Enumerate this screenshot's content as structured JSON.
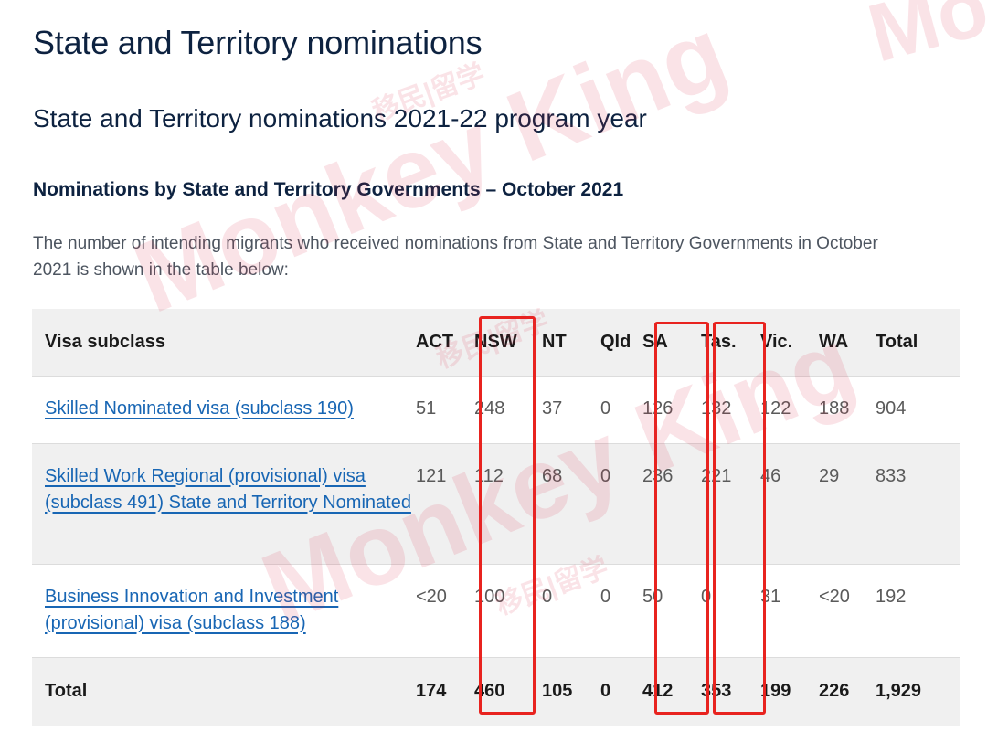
{
  "page": {
    "title": "State and Territory nominations",
    "subtitle": "State and Territory nominations 2021-22 program year",
    "section_heading": "Nominations by State and Territory Governments – October 2021",
    "intro": "The number of intending migrants who received nominations from State and Territory Governments in October 2021 is shown in the table below:"
  },
  "table": {
    "headers": [
      "Visa subclass",
      "ACT",
      "NSW",
      "NT",
      "Qld",
      "SA",
      "Tas.",
      "Vic.",
      "WA",
      "Total"
    ],
    "rows": [
      {
        "visa": "Skilled Nominated visa (subclass 190)",
        "values": [
          "51",
          "248",
          "37",
          "0",
          "126",
          "132",
          "122",
          "188",
          "904"
        ]
      },
      {
        "visa": "Skilled Work Regional (provisional) visa (subclass 491) State and Territory Nominated",
        "values": [
          "121",
          "112",
          "68",
          "0",
          "236",
          "221",
          "46",
          "29",
          "833"
        ]
      },
      {
        "visa": "Business Innovation and Investment (provisional) visa (subclass 188)",
        "values": [
          "<20",
          "100",
          "0",
          "0",
          "50",
          "0",
          "31",
          "<20",
          "192"
        ]
      }
    ],
    "total": {
      "label": "Total",
      "values": [
        "174",
        "460",
        "105",
        "0",
        "412",
        "353",
        "199",
        "226",
        "1,929"
      ]
    },
    "highlighted_columns": [
      "NSW",
      "SA",
      "Tas."
    ]
  },
  "watermark": {
    "brand": "Monkey King",
    "chinese": "移民|留学"
  },
  "colors": {
    "heading": "#0d2240",
    "link": "#1866b4",
    "highlight": "#e8231f",
    "row_shade": "#f0f0f0"
  }
}
